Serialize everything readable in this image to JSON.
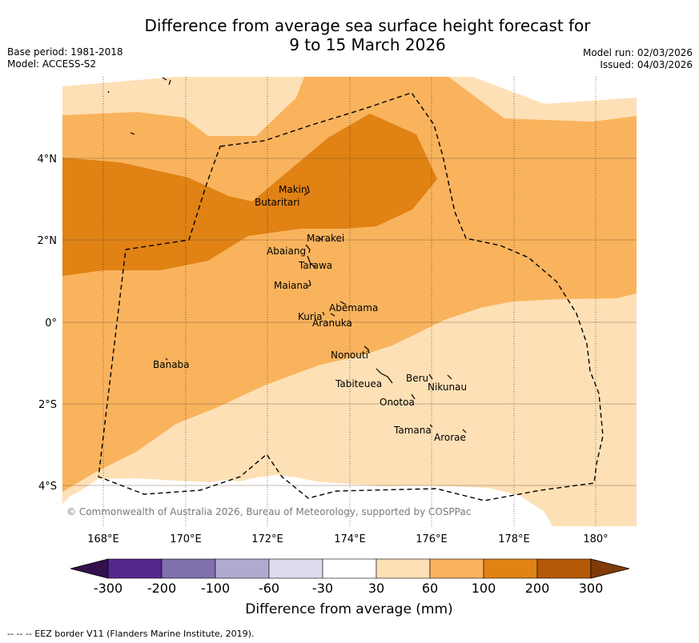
{
  "header": {
    "title_line1": "Difference from average sea surface height forecast for",
    "title_line2": "9 to 15 March 2026",
    "base_period": "Base period: 1981-2018",
    "model": "Model: ACCESS-S2",
    "model_run": "Model run: 02/03/2026",
    "issued": "Issued: 04/03/2026"
  },
  "map": {
    "x_ticks": [
      "168°E",
      "170°E",
      "172°E",
      "174°E",
      "176°E",
      "178°E",
      "180°"
    ],
    "y_ticks": [
      "4°N",
      "2°N",
      "0°",
      "2°S",
      "4°S"
    ],
    "copyright": "© Commonwealth of Australia 2026, Bureau of Meteorology, supported by COSPPac",
    "islands": [
      {
        "name": "Makin"
      },
      {
        "name": "Butaritari"
      },
      {
        "name": "Marakei"
      },
      {
        "name": "Abaiang"
      },
      {
        "name": "Tarawa"
      },
      {
        "name": "Maiana"
      },
      {
        "name": "Abemama"
      },
      {
        "name": "Kuria"
      },
      {
        "name": "Aranuka"
      },
      {
        "name": "Nonouti"
      },
      {
        "name": "Banaba"
      },
      {
        "name": "Beru"
      },
      {
        "name": "Tabiteuea"
      },
      {
        "name": "Nikunau"
      },
      {
        "name": "Onotoa"
      },
      {
        "name": "Tamana"
      },
      {
        "name": "Arorae"
      }
    ]
  },
  "colorbar": {
    "labels": [
      "-300",
      "-200",
      "-100",
      "-60",
      "-30",
      "30",
      "60",
      "100",
      "200",
      "300"
    ],
    "title": "Difference from average (mm)",
    "colors": [
      "#34104f",
      "#54288a",
      "#8070ab",
      "#b0a9d0",
      "#dcdcec",
      "#ffffff",
      "#fee0b6",
      "#f9b35d",
      "#e08214",
      "#b35806",
      "#7f3b08"
    ]
  },
  "footer": {
    "legend": "--  --  -- EEZ border V11 (Flanders Marine Institute, 2019)."
  }
}
